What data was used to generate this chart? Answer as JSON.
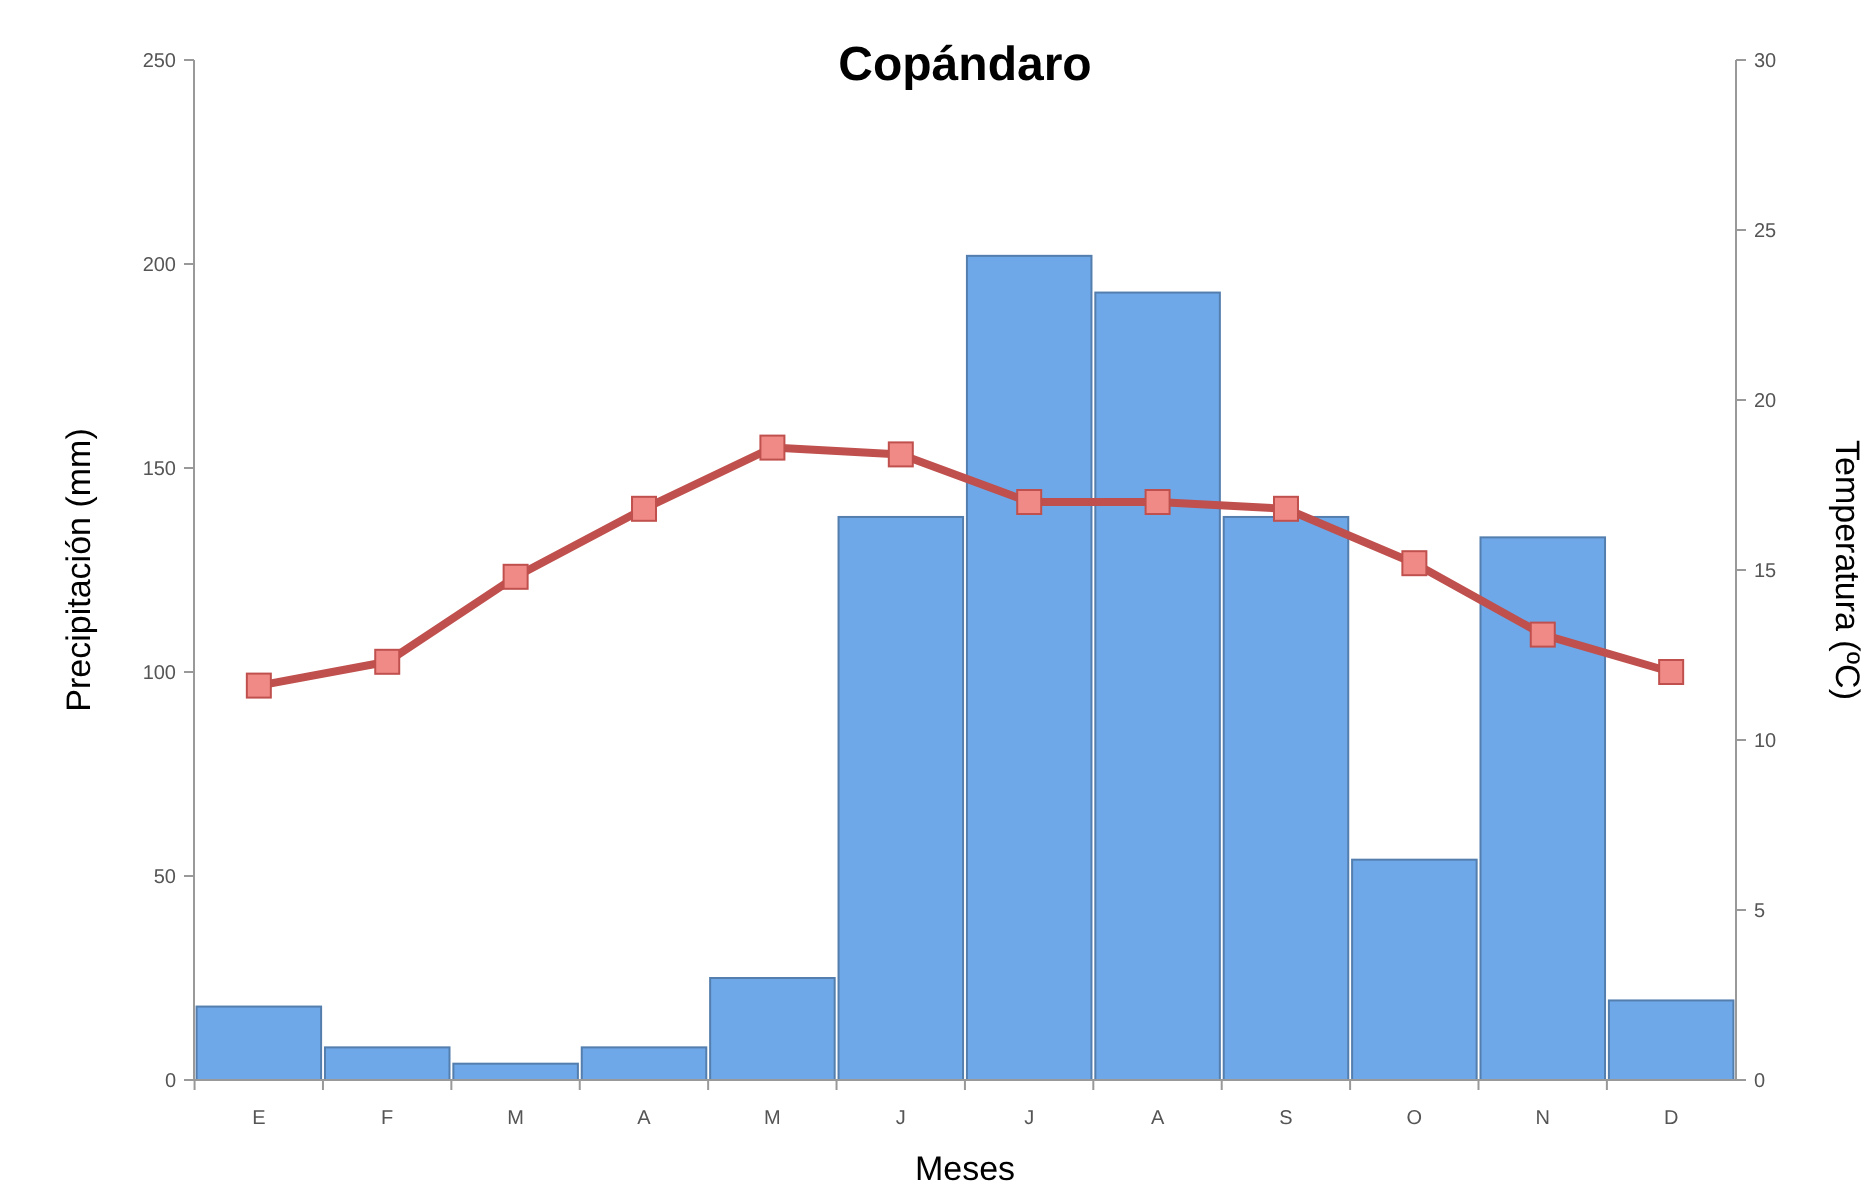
{
  "chart_data": {
    "type": "bar",
    "title": "Copándaro",
    "xlabel": "Meses",
    "ylabel": "Precipitación (mm)",
    "y2label": "Temperatura (ºC)",
    "categories": [
      "E",
      "F",
      "M",
      "A",
      "M",
      "J",
      "J",
      "A",
      "S",
      "O",
      "N",
      "D"
    ],
    "series": [
      {
        "color": "#6fa8e8",
        "values": [
          18,
          8,
          4,
          8,
          25,
          138,
          202,
          193,
          138,
          54,
          133,
          19.5
        ]
      },
      {
        "type": "line",
        "axis": "y2",
        "color": "#c0504d",
        "marker": "square",
        "values": [
          11.6,
          12.3,
          14.8,
          16.8,
          18.6,
          18.4,
          17.0,
          17.0,
          16.8,
          15.2,
          13.1,
          12.0
        ]
      }
    ],
    "ylim": [
      0,
      250
    ],
    "yticks": [
      0,
      50,
      100,
      150,
      200,
      250
    ],
    "y2lim": [
      0,
      30
    ],
    "y2ticks": [
      0,
      5,
      10,
      15,
      20,
      25,
      30
    ],
    "grid": false
  }
}
